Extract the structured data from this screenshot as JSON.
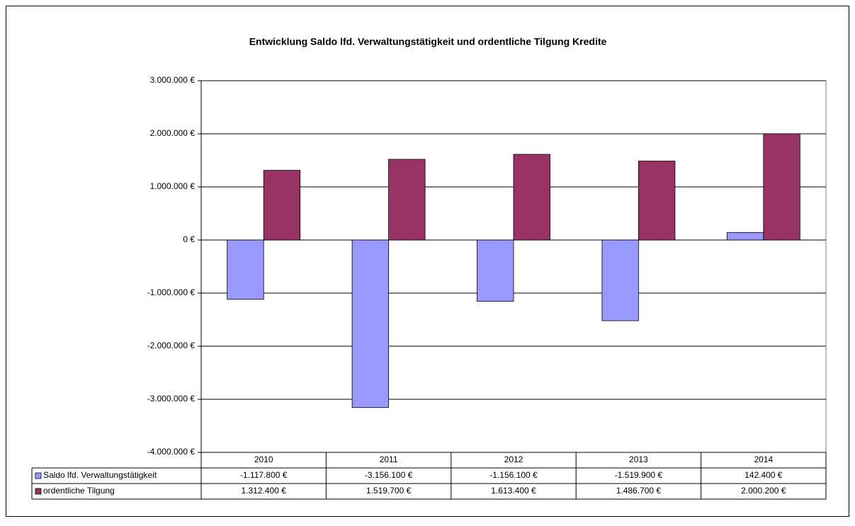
{
  "chart_data": {
    "type": "bar",
    "title": "Entwicklung Saldo lfd. Verwaltungstätigkeit und ordentliche Tilgung Kredite",
    "categories": [
      "2010",
      "2011",
      "2012",
      "2013",
      "2014"
    ],
    "series": [
      {
        "name": "Saldo lfd. Verwaltungstätigkeit",
        "color": "#9999ff",
        "values": [
          -1117800,
          -3156100,
          -1156100,
          -1519900,
          142400
        ],
        "value_labels": [
          "-1.117.800 €",
          "-3.156.100 €",
          "-1.156.100 €",
          "-1.519.900 €",
          "142.400 €"
        ]
      },
      {
        "name": "ordentliche Tilgung",
        "color": "#993366",
        "values": [
          1312400,
          1519700,
          1613400,
          1486700,
          2000200
        ],
        "value_labels": [
          "1.312.400 €",
          "1.519.700 €",
          "1.613.400 €",
          "1.486.700 €",
          "2.000.200 €"
        ]
      }
    ],
    "ylim": [
      -4000000,
      3000000
    ],
    "yticks": [
      {
        "value": -4000000,
        "label": "-4.000.000 €"
      },
      {
        "value": -3000000,
        "label": "-3.000.000 €"
      },
      {
        "value": -2000000,
        "label": "-2.000.000 €"
      },
      {
        "value": -1000000,
        "label": "-1.000.000 €"
      },
      {
        "value": 0,
        "label": "0 €"
      },
      {
        "value": 1000000,
        "label": "1.000.000 €"
      },
      {
        "value": 2000000,
        "label": "2.000.000 €"
      },
      {
        "value": 3000000,
        "label": "3.000.000 €"
      }
    ],
    "grid": true
  }
}
